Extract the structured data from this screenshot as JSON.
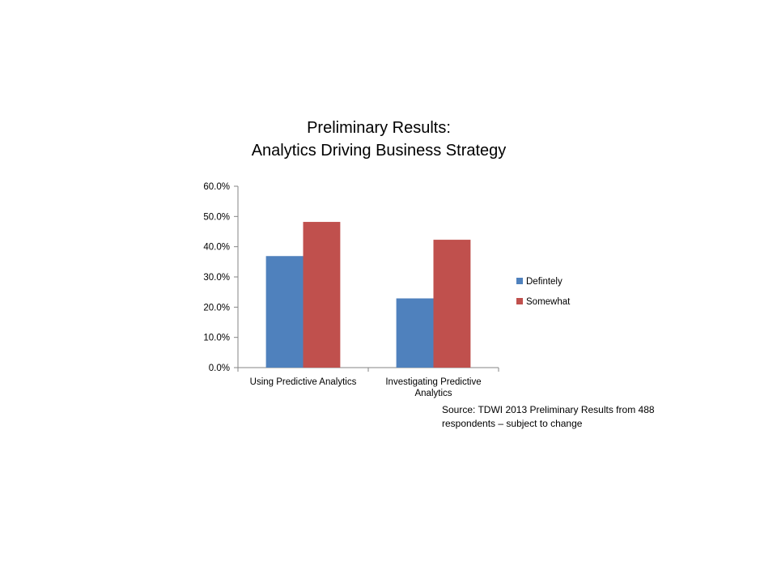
{
  "title_lines": [
    "Preliminary Results:",
    "Analytics Driving Business Strategy"
  ],
  "source_lines": [
    "Source: TDWI 2013  Preliminary Results from 488",
    "respondents – subject to change"
  ],
  "chart_data": {
    "type": "bar",
    "categories": [
      [
        "Using Predictive Analytics"
      ],
      [
        "Investigating Predictive",
        "Analytics"
      ]
    ],
    "series": [
      {
        "name": "Defintely",
        "values": [
          36.9,
          22.9
        ],
        "color": "#4F81BD"
      },
      {
        "name": "Somewhat",
        "values": [
          48.2,
          42.3
        ],
        "color": "#C0504D"
      }
    ],
    "ylim": [
      0,
      60
    ],
    "yticks": [
      0,
      10,
      20,
      30,
      40,
      50,
      60
    ],
    "ytick_labels": [
      "0.0%",
      "10.0%",
      "20.0%",
      "30.0%",
      "40.0%",
      "50.0%",
      "60.0%"
    ],
    "grid": false,
    "legend_position": "right"
  }
}
